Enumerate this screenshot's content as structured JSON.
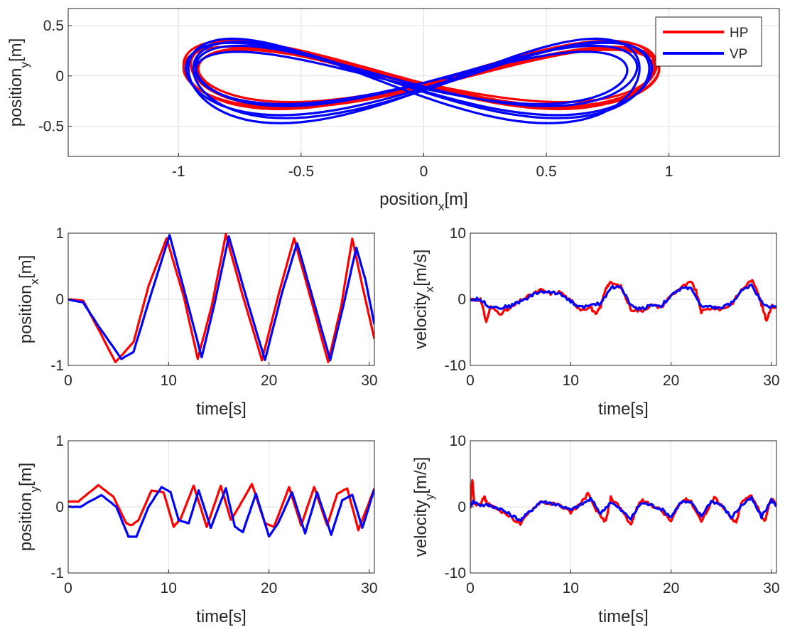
{
  "colors": {
    "hp": "#ff0000",
    "vp": "#0000ff",
    "grid": "#e0e0e0",
    "axis": "#262626"
  },
  "chart_data": [
    {
      "id": "traj",
      "type": "line",
      "title": "",
      "xlabel": {
        "main": "position",
        "sub": "x",
        "unit": "[m]"
      },
      "ylabel": {
        "main": "position",
        "sub": "y",
        "unit": "[m]"
      },
      "xlim": [
        -1.45,
        1.45
      ],
      "ylim": [
        -0.8,
        0.67
      ],
      "xticks": [
        -1,
        -0.5,
        0,
        0.5,
        1
      ],
      "xtick_labels": [
        "-1",
        "-0.5",
        "0",
        "0.5",
        "1"
      ],
      "yticks": [
        -0.5,
        0,
        0.5
      ],
      "ytick_labels": [
        "-0.5",
        "0",
        "0.5"
      ],
      "grid": true,
      "legend": {
        "position": "top-right",
        "entries": [
          "HP",
          "VP"
        ]
      },
      "series": [
        {
          "name": "HP",
          "color": "#ff0000",
          "kind": "lissajous",
          "loops": [
            {
              "ax": 0.95,
              "ay": 0.32,
              "dx": 0.0,
              "dy": 0.02
            },
            {
              "ax": 0.97,
              "ay": 0.3,
              "dx": -0.01,
              "dy": -0.01
            },
            {
              "ax": 0.93,
              "ay": 0.26,
              "dx": 0.01,
              "dy": 0.0
            },
            {
              "ax": 0.96,
              "ay": 0.34,
              "dx": -0.02,
              "dy": 0.01
            },
            {
              "ax": 0.94,
              "ay": 0.29,
              "dx": 0.02,
              "dy": -0.02
            }
          ]
        },
        {
          "name": "VP",
          "color": "#0000ff",
          "kind": "lissajous",
          "loops": [
            {
              "ax": 0.92,
              "ay": 0.42,
              "dx": -0.04,
              "dy": -0.05
            },
            {
              "ax": 0.95,
              "ay": 0.36,
              "dx": -0.02,
              "dy": -0.03
            },
            {
              "ax": 0.9,
              "ay": 0.3,
              "dx": -0.03,
              "dy": 0.0
            },
            {
              "ax": 0.88,
              "ay": 0.26,
              "dx": -0.05,
              "dy": -0.02
            },
            {
              "ax": 0.93,
              "ay": 0.38,
              "dx": -0.01,
              "dy": -0.04
            }
          ]
        }
      ]
    },
    {
      "id": "posx",
      "type": "line",
      "xlabel": {
        "main": "time[s]"
      },
      "ylabel": {
        "main": "position",
        "sub": "x",
        "unit": "[m]"
      },
      "xlim": [
        0,
        30.5
      ],
      "ylim": [
        -1,
        1
      ],
      "xticks": [
        0,
        10,
        20,
        30
      ],
      "xtick_labels": [
        "0",
        "10",
        "20",
        "30"
      ],
      "yticks": [
        -1,
        0,
        1
      ],
      "ytick_labels": [
        "-1",
        "0",
        "1"
      ],
      "grid": true,
      "series": [
        {
          "name": "HP",
          "color": "#ff0000",
          "t": [
            0,
            1.5,
            3,
            4.7,
            6.5,
            8,
            9.8,
            11.5,
            12.9,
            14.3,
            15.7,
            17.3,
            19.3,
            21,
            22.5,
            24,
            25.9,
            27.2,
            28.3,
            29.3,
            30.5
          ],
          "v": [
            0,
            -0.02,
            -0.45,
            -0.95,
            -0.65,
            0.2,
            0.92,
            0.05,
            -0.9,
            -0.1,
            0.98,
            0.1,
            -0.92,
            0.1,
            0.92,
            0.1,
            -0.95,
            -0.1,
            0.92,
            0.2,
            -0.6
          ]
        },
        {
          "name": "VP",
          "color": "#0000ff",
          "t": [
            0,
            1.5,
            3,
            5.3,
            6.5,
            8.3,
            10.1,
            11.7,
            13.3,
            14.6,
            16,
            17.6,
            19.6,
            21.3,
            22.8,
            24.3,
            26.1,
            27.4,
            28.7,
            29.6,
            30.5
          ],
          "v": [
            0,
            -0.05,
            -0.4,
            -0.9,
            -0.8,
            0.1,
            0.97,
            0.05,
            -0.88,
            -0.05,
            0.95,
            0.1,
            -0.92,
            0.1,
            0.85,
            0.05,
            -0.92,
            -0.1,
            0.78,
            0.3,
            -0.38
          ]
        }
      ]
    },
    {
      "id": "velx",
      "type": "line",
      "xlabel": {
        "main": "time[s]"
      },
      "ylabel": {
        "main": "velocity",
        "sub": "x",
        "unit": "[m/s]"
      },
      "xlim": [
        0,
        30.5
      ],
      "ylim": [
        -10,
        10
      ],
      "xticks": [
        0,
        10,
        20,
        30
      ],
      "xtick_labels": [
        "0",
        "10",
        "20",
        "30"
      ],
      "yticks": [
        -10,
        0,
        10
      ],
      "ytick_labels": [
        "-10",
        "0",
        "10"
      ],
      "grid": true,
      "series": [
        {
          "name": "HP",
          "color": "#ff0000",
          "t": [
            0,
            1,
            1.6,
            2,
            3,
            4,
            5,
            6,
            7,
            8,
            9,
            10,
            11,
            12,
            12.5,
            13,
            13.5,
            14,
            15,
            16,
            17,
            18,
            19,
            20,
            21,
            22,
            22.5,
            23,
            24,
            25,
            26,
            27,
            28,
            28.5,
            29,
            29.5,
            30,
            30.5
          ],
          "v": [
            0,
            0,
            -3.4,
            -1.2,
            -2.1,
            -1.4,
            -0.2,
            0.6,
            1.4,
            0.9,
            1.1,
            -0.3,
            -1.5,
            -1.2,
            -2.4,
            -1.0,
            1.8,
            2.5,
            1.9,
            -1.5,
            -1.8,
            -0.9,
            -1.2,
            0.6,
            1.8,
            2.6,
            1.2,
            -1.9,
            -1.3,
            -1.5,
            -0.8,
            1.4,
            2.9,
            1.8,
            -0.8,
            -3.2,
            -1.0,
            -1.3
          ]
        },
        {
          "name": "VP",
          "color": "#0000ff",
          "t": [
            0,
            1,
            1.8,
            3,
            4,
            5,
            6,
            7,
            8,
            9,
            10,
            11,
            12,
            13,
            14,
            15,
            16,
            17,
            18,
            19,
            20,
            21,
            22,
            23,
            24,
            25,
            26,
            27,
            28,
            29,
            30,
            30.5
          ],
          "v": [
            0,
            0,
            -1.0,
            -1.3,
            -1.0,
            -0.3,
            0.5,
            1.2,
            1.0,
            0.9,
            -0.3,
            -1.2,
            -1.0,
            -0.6,
            1.8,
            1.9,
            -1.0,
            -1.5,
            -0.8,
            -1.0,
            0.5,
            1.6,
            1.8,
            -1.2,
            -1.2,
            -1.3,
            -0.6,
            1.2,
            2.3,
            -0.4,
            -1.2,
            -1.0
          ]
        }
      ]
    },
    {
      "id": "posy",
      "type": "line",
      "xlabel": {
        "main": "time[s]"
      },
      "ylabel": {
        "main": "position",
        "sub": "y",
        "unit": "[m]"
      },
      "xlim": [
        0,
        30.5
      ],
      "ylim": [
        -1,
        1
      ],
      "xticks": [
        0,
        10,
        20,
        30
      ],
      "xtick_labels": [
        "0",
        "10",
        "20",
        "30"
      ],
      "yticks": [
        -1,
        0,
        1
      ],
      "ytick_labels": [
        "-1",
        "0",
        "1"
      ],
      "grid": true,
      "series": [
        {
          "name": "HP",
          "color": "#ff0000",
          "t": [
            0,
            1,
            3,
            4.5,
            5.8,
            6.3,
            7,
            8.3,
            9.5,
            10.5,
            11.2,
            12.5,
            13.8,
            15.2,
            16.2,
            17,
            18.3,
            19.6,
            20.5,
            22,
            23.2,
            24.5,
            25.8,
            26.8,
            27.8,
            28.9,
            29.8,
            30.5
          ],
          "v": [
            0.08,
            0.08,
            0.33,
            0.15,
            -0.25,
            -0.28,
            -0.2,
            0.25,
            0.22,
            -0.3,
            -0.18,
            0.32,
            -0.3,
            0.32,
            -0.2,
            0.0,
            0.35,
            -0.25,
            -0.3,
            0.3,
            -0.28,
            0.3,
            -0.28,
            0.2,
            0.28,
            -0.35,
            0.0,
            0.28
          ]
        },
        {
          "name": "VP",
          "color": "#0000ff",
          "t": [
            0,
            1.2,
            3.3,
            4.8,
            6,
            6.8,
            8,
            9.3,
            10.2,
            11,
            12,
            13,
            14.2,
            15.7,
            16.6,
            17.4,
            18.7,
            20,
            20.9,
            22.3,
            23.6,
            24.8,
            26.2,
            27.3,
            28.3,
            29.3,
            30.5
          ],
          "v": [
            0.0,
            0.0,
            0.18,
            0.0,
            -0.45,
            -0.45,
            0.0,
            0.3,
            0.22,
            -0.2,
            -0.25,
            0.25,
            -0.32,
            0.28,
            -0.3,
            -0.38,
            0.2,
            -0.45,
            -0.25,
            0.22,
            -0.4,
            0.22,
            -0.42,
            0.1,
            0.18,
            -0.32,
            0.27
          ]
        }
      ]
    },
    {
      "id": "vely",
      "type": "line",
      "xlabel": {
        "main": "time[s]"
      },
      "ylabel": {
        "main": "velocity",
        "sub": "y",
        "unit": "[m/s]"
      },
      "xlim": [
        0,
        30.5
      ],
      "ylim": [
        -10,
        10
      ],
      "xticks": [
        0,
        10,
        20,
        30
      ],
      "xtick_labels": [
        "0",
        "10",
        "20",
        "30"
      ],
      "yticks": [
        -10,
        0,
        10
      ],
      "ytick_labels": [
        "-10",
        "0",
        "10"
      ],
      "grid": true,
      "series": [
        {
          "name": "HP",
          "color": "#ff0000",
          "t": [
            0,
            0.2,
            0.4,
            1,
            1.4,
            1.7,
            2,
            3,
            4,
            5,
            6,
            7,
            8,
            9,
            10,
            11,
            11.7,
            12.3,
            13,
            13.5,
            14,
            15,
            16,
            16.5,
            17,
            18,
            19,
            20,
            20.8,
            21.5,
            22,
            23,
            23.7,
            24.3,
            25,
            26,
            26.5,
            27,
            28,
            28.7,
            29.3,
            30,
            30.5
          ],
          "v": [
            0,
            4.2,
            0.5,
            0.3,
            1.5,
            0.4,
            0.2,
            -0.5,
            -1.5,
            -2.6,
            -0.6,
            0.8,
            0.5,
            0.2,
            -0.8,
            0.5,
            2.0,
            0.2,
            -1.6,
            -2.2,
            1.4,
            -0.2,
            -2.8,
            -0.5,
            1.0,
            0.3,
            -0.5,
            -2.2,
            0.3,
            1.3,
            0.7,
            -2.1,
            -0.4,
            1.6,
            0.2,
            -1.8,
            -2.4,
            0.6,
            1.8,
            -0.3,
            -2.3,
            1.4,
            0.2
          ]
        },
        {
          "name": "VP",
          "color": "#0000ff",
          "t": [
            0,
            0.3,
            1,
            2,
            3,
            4,
            5,
            6,
            7,
            8,
            9,
            10,
            11,
            12,
            13,
            14,
            15,
            16,
            17,
            18,
            19,
            20,
            21,
            22,
            23,
            24,
            25,
            26,
            27,
            28,
            29,
            30,
            30.5
          ],
          "v": [
            0.2,
            0.8,
            0.3,
            0.2,
            -0.3,
            -1.2,
            -2.0,
            -0.6,
            0.8,
            0.6,
            0.2,
            -0.5,
            0.3,
            1.2,
            -1.0,
            0.8,
            -0.5,
            -1.8,
            0.6,
            0.3,
            -0.3,
            -1.5,
            0.8,
            0.6,
            -1.4,
            0.9,
            0.3,
            -1.6,
            0.2,
            1.3,
            -1.5,
            1.0,
            0.2
          ]
        }
      ]
    }
  ]
}
